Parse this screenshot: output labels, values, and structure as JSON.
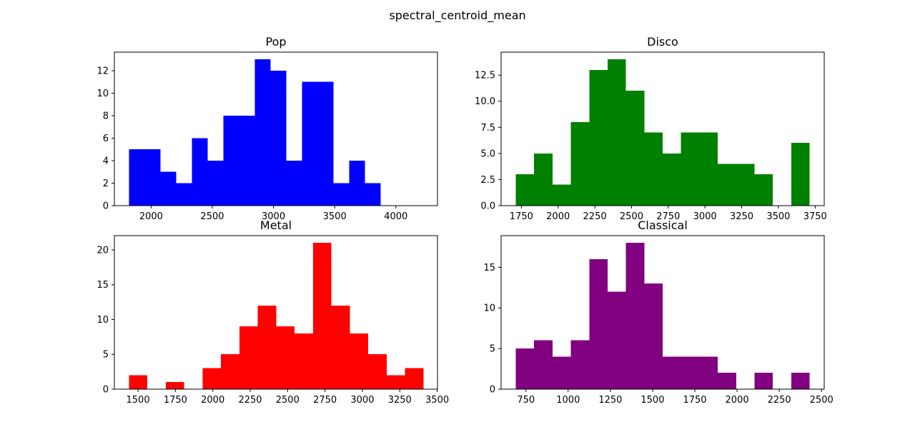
{
  "suptitle": "spectral_centroid_mean",
  "chart_data": [
    {
      "type": "bar",
      "title": "Pop",
      "color": "#0000ff",
      "bin_start": 1820,
      "bin_width": 128.5,
      "counts": [
        5,
        5,
        3,
        2,
        6,
        4,
        8,
        8,
        13,
        12,
        4,
        11,
        11,
        2,
        4,
        2
      ],
      "xlim": [
        1700,
        4340
      ],
      "ylim": [
        0,
        13.65
      ],
      "xticks": [
        2000,
        2500,
        3000,
        3500,
        4000
      ],
      "xtick_labels": [
        "2000",
        "2500",
        "3000",
        "3500",
        "4000"
      ],
      "yticks": [
        0,
        2,
        4,
        6,
        8,
        10,
        12
      ],
      "ytick_labels": [
        "0",
        "2",
        "4",
        "6",
        "8",
        "10",
        "12"
      ]
    },
    {
      "type": "bar",
      "title": "Disco",
      "color": "#008000",
      "bin_start": 1712,
      "bin_width": 125,
      "counts": [
        3,
        5,
        2,
        8,
        13,
        14,
        11,
        7,
        5,
        7,
        7,
        4,
        4,
        3,
        0,
        6
      ],
      "xlim": [
        1612,
        3812
      ],
      "ylim": [
        0,
        14.7
      ],
      "xticks": [
        1750,
        2000,
        2250,
        2500,
        2750,
        3000,
        3250,
        3500,
        3750
      ],
      "xtick_labels": [
        "1750",
        "2000",
        "2250",
        "2500",
        "2750",
        "3000",
        "3250",
        "3500",
        "3750"
      ],
      "yticks": [
        0,
        2.5,
        5,
        7.5,
        10,
        12.5
      ],
      "ytick_labels": [
        "0.0",
        "2.5",
        "5.0",
        "7.5",
        "10.0",
        "12.5"
      ]
    },
    {
      "type": "bar",
      "title": "Metal",
      "color": "#ff0000",
      "bin_start": 1440,
      "bin_width": 123,
      "counts": [
        2,
        0,
        1,
        0,
        3,
        5,
        9,
        12,
        9,
        8,
        21,
        12,
        8,
        5,
        2,
        3
      ],
      "xlim": [
        1342,
        3502
      ],
      "ylim": [
        0,
        22.05
      ],
      "xticks": [
        1500,
        1750,
        2000,
        2250,
        2500,
        2750,
        3000,
        3250,
        3500
      ],
      "xtick_labels": [
        "1500",
        "1750",
        "2000",
        "2250",
        "2500",
        "2750",
        "3000",
        "3250",
        "3500"
      ],
      "yticks": [
        0,
        5,
        10,
        15,
        20
      ],
      "ytick_labels": [
        "0",
        "5",
        "10",
        "15",
        "20"
      ]
    },
    {
      "type": "bar",
      "title": "Classical",
      "color": "#800080",
      "bin_start": 690,
      "bin_width": 108.7,
      "counts": [
        5,
        6,
        4,
        6,
        16,
        12,
        18,
        13,
        4,
        4,
        4,
        2,
        0,
        2,
        0,
        2
      ],
      "xlim": [
        603,
        2516
      ],
      "ylim": [
        0,
        18.9
      ],
      "xticks": [
        750,
        1000,
        1250,
        1500,
        1750,
        2000,
        2250,
        2500
      ],
      "xtick_labels": [
        "750",
        "1000",
        "1250",
        "1500",
        "1750",
        "2000",
        "2250",
        "2500"
      ],
      "yticks": [
        0,
        5,
        10,
        15
      ],
      "ytick_labels": [
        "0",
        "5",
        "10",
        "15"
      ]
    }
  ]
}
